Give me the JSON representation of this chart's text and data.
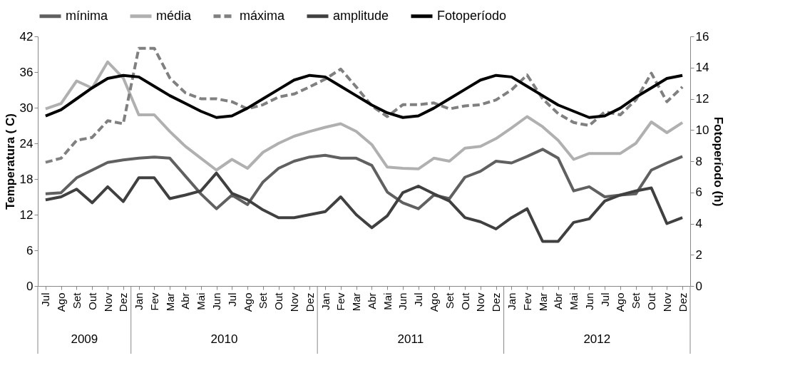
{
  "chart_data": {
    "type": "line",
    "categories": [
      "Jul",
      "Ago",
      "Set",
      "Out",
      "Nov",
      "Dez",
      "Jan",
      "Fev",
      "Mar",
      "Abr",
      "Mai",
      "Jun",
      "Jul",
      "Ago",
      "Set",
      "Out",
      "Nov",
      "Dez",
      "Jan",
      "Fev",
      "Mar",
      "Abr",
      "Mai",
      "Jun",
      "Jul",
      "Ago",
      "Set",
      "Out",
      "Nov",
      "Dez",
      "Jan",
      "Fev",
      "Mar",
      "Abr",
      "Mai",
      "Jun",
      "Jul",
      "Ago",
      "Set",
      "Out",
      "Nov",
      "Dez"
    ],
    "ylabel": "Temperatura ( C)",
    "y2label": "Fotoperíodo (h)",
    "ylim": [
      0,
      42
    ],
    "yticks": [
      0,
      6,
      12,
      18,
      24,
      30,
      36,
      42
    ],
    "y2lim": [
      0,
      16
    ],
    "y2ticks": [
      0,
      2,
      4,
      6,
      8,
      10,
      12,
      14,
      16
    ],
    "legend": "top",
    "grid": false,
    "annotations": [
      "2009",
      "2010",
      "2011",
      "2012"
    ],
    "series": [
      {
        "name": "mínima",
        "color": "#606060",
        "line_style": "solid",
        "values": [
          15.5,
          15.7,
          18.2,
          19.5,
          20.8,
          21.2,
          21.5,
          21.7,
          21.5,
          18.5,
          15.5,
          13,
          15.3,
          13.7,
          17.5,
          19.8,
          21,
          21.7,
          22,
          21.5,
          21.5,
          20.3,
          15.8,
          14,
          13,
          15.3,
          14.7,
          18.3,
          19.3,
          21,
          20.7,
          21.8,
          23,
          21.5,
          16,
          16.7,
          15,
          15.3,
          15.5,
          19.5,
          20.7,
          21.8
        ]
      },
      {
        "name": "média",
        "color": "#b0b0b0",
        "line_style": "solid",
        "values": [
          29.8,
          30.7,
          34.5,
          33.3,
          37.7,
          35,
          28.8,
          28.8,
          26,
          23.5,
          21.5,
          19.5,
          21.3,
          19.8,
          22.5,
          24,
          25.2,
          26,
          26.7,
          27.3,
          26,
          23.8,
          20,
          19.8,
          19.7,
          21.5,
          21,
          23.2,
          23.5,
          24.8,
          26.6,
          28.5,
          26.8,
          24.5,
          21.3,
          22.3,
          22.3,
          22.3,
          24,
          27.6,
          25.8,
          27.5
        ]
      },
      {
        "name": "máxima",
        "color": "#808080",
        "line_style": "dashed",
        "values": [
          20.8,
          21.5,
          24.5,
          25,
          27.8,
          27.3,
          40,
          40,
          35,
          32.5,
          31.5,
          31.5,
          31,
          29.8,
          30.5,
          31.8,
          32.3,
          33.5,
          34.8,
          36.5,
          33.5,
          30.3,
          28.5,
          30.5,
          30.5,
          30.8,
          29.8,
          30.3,
          30.5,
          31.3,
          33,
          35.5,
          31.5,
          29,
          27.5,
          27,
          29.3,
          28.8,
          31.3,
          35.8,
          31,
          33.5
        ]
      },
      {
        "name": "amplitude",
        "color": "#404040",
        "line_style": "solid",
        "values": [
          14.5,
          15,
          16.3,
          14,
          16.7,
          14.2,
          18.2,
          18.2,
          14.7,
          15.3,
          16,
          19,
          15.6,
          14.5,
          12.8,
          11.5,
          11.5,
          12,
          12.5,
          15,
          12,
          9.8,
          11.8,
          15.7,
          16.8,
          15.5,
          14.3,
          11.5,
          10.8,
          9.6,
          11.5,
          13,
          7.5,
          7.5,
          10.7,
          11.3,
          14.3,
          15.3,
          16,
          16.5,
          10.5,
          11.5
        ]
      },
      {
        "name": "Fotoperíodo",
        "color": "#000000",
        "line_style": "solid",
        "axis": "y2",
        "values": [
          10.9,
          11.3,
          12,
          12.7,
          13.3,
          13.5,
          13.4,
          12.8,
          12.2,
          11.7,
          11.2,
          10.8,
          10.9,
          11.4,
          12,
          12.6,
          13.2,
          13.5,
          13.4,
          12.8,
          12.2,
          11.6,
          11.1,
          10.8,
          10.9,
          11.4,
          12,
          12.6,
          13.2,
          13.5,
          13.4,
          12.8,
          12.2,
          11.6,
          11.2,
          10.8,
          10.9,
          11.4,
          12.1,
          12.7,
          13.3,
          13.5
        ]
      }
    ]
  }
}
